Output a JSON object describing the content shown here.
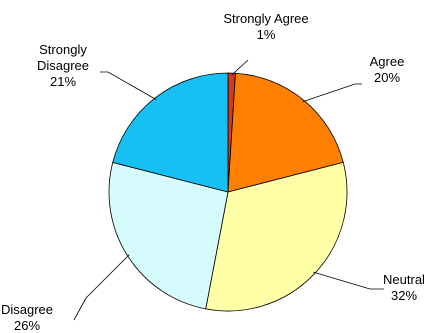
{
  "chart_data": {
    "type": "pie",
    "title": "",
    "slices": [
      {
        "name": "Strongly Agree",
        "label_lines": [
          "Strongly Agree"
        ],
        "percent_label": "1%",
        "value": 1,
        "color": "#d23a1a"
      },
      {
        "name": "Agree",
        "label_lines": [
          "Agree"
        ],
        "percent_label": "20%",
        "value": 20,
        "color": "#ff7f00"
      },
      {
        "name": "Neutral",
        "label_lines": [
          "Neutral"
        ],
        "percent_label": "32%",
        "value": 32,
        "color": "#ffffa8"
      },
      {
        "name": "Disagree",
        "label_lines": [
          "Disagree"
        ],
        "percent_label": "26%",
        "value": 26,
        "color": "#d6fbfd"
      },
      {
        "name": "Strongly Disagree",
        "label_lines": [
          "Strongly",
          "Disagree"
        ],
        "percent_label": "21%",
        "value": 21,
        "color": "#16c0f5"
      }
    ],
    "legend": "none",
    "start_angle": "12 o'clock",
    "direction": "clockwise"
  }
}
